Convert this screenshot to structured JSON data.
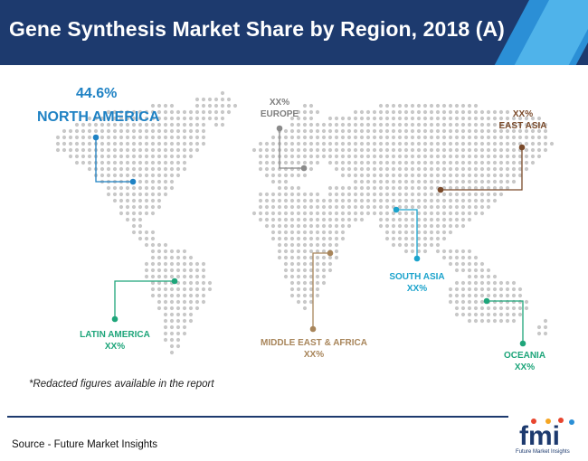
{
  "title": "Gene Synthesis Market Share by Region, 2018 (A)",
  "regions": {
    "north_america": {
      "value": "44.6%",
      "name": "NORTH AMERICA",
      "color": "#1f82c4"
    },
    "europe": {
      "value": "XX%",
      "name": "EUROPE",
      "color": "#7f7f7f"
    },
    "east_asia": {
      "value": "XX%",
      "name": "EAST ASIA",
      "color": "#7a4a2a"
    },
    "south_asia": {
      "name": "SOUTH ASIA",
      "value": "XX%",
      "color": "#1ba3cc"
    },
    "latin_america": {
      "name": "LATIN AMERICA",
      "value": "XX%",
      "color": "#1ea57a"
    },
    "middle_east_africa": {
      "name": "MIDDLE EAST & AFRICA",
      "value": "XX%",
      "color": "#a8855a"
    },
    "oceania": {
      "name": "OCEANIA",
      "value": "XX%",
      "color": "#1ea57a"
    }
  },
  "footnote": "*Redacted figures available in the report",
  "source": "Source - Future Market Insights",
  "logo": {
    "text": "fmi",
    "caption": "Future Market Insights"
  },
  "colors": {
    "header": "#1d3a6e",
    "accent": "#2b8fd6",
    "map_dots": "#c8c8c8"
  }
}
